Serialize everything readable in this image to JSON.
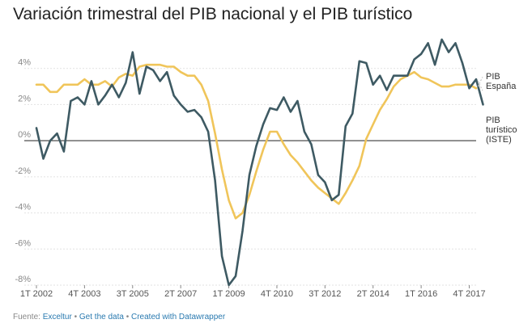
{
  "title": "Variación trimestral del PIB nacional y el PIB turístico",
  "footer": {
    "prefix": "Fuente: ",
    "source": "Exceltur",
    "get_data": "Get the data",
    "created_with": "Created with Datawrapper",
    "separator": " • "
  },
  "chart_data": {
    "type": "line",
    "title": "Variación trimestral del PIB nacional y el PIB turístico",
    "xlabel": "",
    "ylabel": "",
    "ylim": [
      -8,
      6
    ],
    "yticks": [
      4,
      2,
      0,
      -2,
      -4,
      -6,
      -8
    ],
    "ytick_labels": [
      "4%",
      "2%",
      "0%",
      "-2%",
      "-4%",
      "-6%",
      "-8%"
    ],
    "x_start_index": 0,
    "xticks": [
      {
        "index": 0,
        "label": "1T 2002"
      },
      {
        "index": 7,
        "label": "4T 2003"
      },
      {
        "index": 14,
        "label": "3T 2005"
      },
      {
        "index": 21,
        "label": "2T 2007"
      },
      {
        "index": 28,
        "label": "1T 2009"
      },
      {
        "index": 35,
        "label": "4T 2010"
      },
      {
        "index": 42,
        "label": "3T 2012"
      },
      {
        "index": 49,
        "label": "2T 2014"
      },
      {
        "index": 56,
        "label": "1T 2016"
      },
      {
        "index": 63,
        "label": "4T 2017"
      }
    ],
    "grid": true,
    "series": [
      {
        "name": "PIB España",
        "color": "#f0c55a",
        "values": [
          3.1,
          3.1,
          2.7,
          2.7,
          3.1,
          3.1,
          3.1,
          3.4,
          3.1,
          3.1,
          3.3,
          3.0,
          3.5,
          3.7,
          3.6,
          4.1,
          4.2,
          4.2,
          4.2,
          4.1,
          4.1,
          3.8,
          3.6,
          3.6,
          3.1,
          2.2,
          0.4,
          -1.6,
          -3.3,
          -4.3,
          -4.0,
          -3.0,
          -1.7,
          -0.5,
          0.5,
          0.5,
          -0.2,
          -0.8,
          -1.2,
          -1.7,
          -2.2,
          -2.6,
          -2.9,
          -3.2,
          -3.5,
          -2.9,
          -2.2,
          -1.4,
          0.1,
          0.9,
          1.7,
          2.3,
          3.0,
          3.4,
          3.6,
          3.8,
          3.5,
          3.4,
          3.2,
          3.0,
          3.0,
          3.1,
          3.1,
          3.1,
          2.9
        ]
      },
      {
        "name": "PIB turístico (ISTE)",
        "color": "#3e5a63",
        "values": [
          0.7,
          -1.0,
          0.0,
          0.4,
          -0.6,
          2.2,
          2.4,
          2.0,
          3.3,
          2.0,
          2.5,
          3.1,
          2.4,
          3.2,
          4.9,
          2.6,
          4.1,
          3.9,
          3.3,
          3.8,
          2.5,
          2.0,
          1.6,
          1.7,
          1.3,
          0.5,
          -2.2,
          -6.4,
          -8.0,
          -7.5,
          -5.0,
          -1.9,
          -0.3,
          0.9,
          1.8,
          1.7,
          2.4,
          1.6,
          2.2,
          0.5,
          -0.2,
          -1.9,
          -2.3,
          -3.3,
          -3.0,
          0.8,
          1.5,
          4.4,
          4.3,
          3.1,
          3.6,
          2.8,
          3.6,
          3.6,
          3.6,
          4.5,
          4.8,
          5.4,
          4.2,
          5.6,
          4.9,
          5.4,
          4.3,
          2.9,
          3.4,
          2.0
        ]
      }
    ],
    "series_labels": [
      {
        "name": "PIB España",
        "lines": [
          "PIB",
          "España"
        ]
      },
      {
        "name": "PIB turístico (ISTE)",
        "lines": [
          "PIB",
          "turístico",
          "(ISTE)"
        ]
      }
    ]
  }
}
